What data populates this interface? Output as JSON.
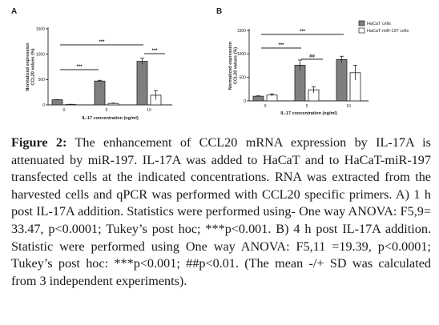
{
  "chart_data": [
    {
      "panel": "A",
      "type": "bar",
      "ylabel": "Normalized expression CCL20 values (%)",
      "xlabel": "IL-17 concentration (ng/ml)",
      "ylim": [
        0,
        1500
      ],
      "yticks": [
        "0",
        "500",
        "1000",
        "1500"
      ],
      "categories": [
        "0",
        "5",
        "10"
      ],
      "series": [
        {
          "values": [
            100,
            470,
            860
          ],
          "errors": [
            5,
            15,
            60
          ],
          "color": "#7f7f7f"
        },
        {
          "values": [
            8,
            28,
            190
          ],
          "errors": [
            5,
            8,
            90
          ],
          "color": "#ffffff"
        }
      ],
      "significance": [
        {
          "label": "***",
          "from": 0,
          "to": 1
        },
        {
          "label": "***",
          "from": 0,
          "to": 2
        },
        {
          "label": "***",
          "within": 2
        }
      ],
      "legend": false
    },
    {
      "panel": "B",
      "type": "bar",
      "ylabel": "Normalized expression CCL20 values (%)",
      "xlabel": "IL-17 concentration (ng/ml)",
      "ylim": [
        0,
        1500
      ],
      "yticks": [
        "0",
        "500",
        "1000",
        "1500"
      ],
      "categories": [
        "0",
        "5",
        "10"
      ],
      "series": [
        {
          "name": "HaCaT cells",
          "values": [
            100,
            760,
            880
          ],
          "errors": [
            8,
            110,
            70
          ],
          "color": "#7f7f7f"
        },
        {
          "name": "HaCaT-miR-197 cells",
          "values": [
            125,
            235,
            600
          ],
          "errors": [
            25,
            65,
            160
          ],
          "color": "#ffffff"
        }
      ],
      "significance": [
        {
          "label": "***",
          "from": 0,
          "to": 1
        },
        {
          "label": "***",
          "from": 0,
          "to": 2
        },
        {
          "label": "##",
          "within": 1
        }
      ],
      "legend": "top-right"
    }
  ],
  "caption": {
    "label": "Figure 2:",
    "text": " The enhancement of CCL20 mRNA expression by IL-17A is attenuated by miR-197. IL-17A was added to HaCaT and to HaCaT-miR-197 transfected cells at the indicated concentrations. RNA was extracted from the harvested cells and qPCR was performed with CCL20 specific primers. A) 1 h post IL-17A addition. Statistics were performed using- One way ANOVA: F5,9= 33.47, p<0.0001; Tukey’s post hoc; ***p<0.001. B) 4 h post IL-17A addition. Statistic were performed using One way ANOVA: F5,11 =19.39, p<0.0001; Tukey’s post hoc: ***p<0.001; ##p<0.01. (The mean -/+ SD was calculated from 3 independent experiments)."
  }
}
